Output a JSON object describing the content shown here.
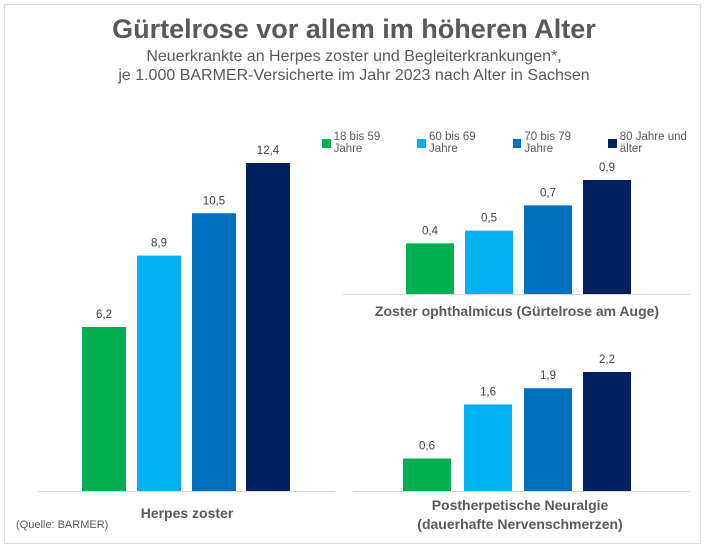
{
  "title": "Gürtelrose vor allem im höheren Alter",
  "subtitle_line1": "Neuerkrankte an Herpes zoster und Begleiterkrankungen*,",
  "subtitle_line2": "je 1.000 BARMER-Versicherte im Jahr 2023 nach Alter in Sachsen",
  "source": "(Quelle: BARMER)",
  "legend": [
    {
      "label": "18 bis 59 Jahre",
      "color": "#00b050"
    },
    {
      "label": "60 bis 69 Jahre",
      "color": "#00b0f0"
    },
    {
      "label": "70 bis 79 Jahre",
      "color": "#0070c0"
    },
    {
      "label": "80 Jahre und älter",
      "color": "#002060"
    }
  ],
  "chart_data": [
    {
      "type": "bar",
      "title": "Herpes zoster",
      "categories": [
        "18 bis 59 Jahre",
        "60 bis 69 Jahre",
        "70 bis 79 Jahre",
        "80 Jahre und älter"
      ],
      "values": [
        6.2,
        8.9,
        10.5,
        12.4
      ],
      "labels": [
        "6,2",
        "8,9",
        "10,5",
        "12,4"
      ],
      "ylim": [
        0,
        12.4
      ],
      "grid": false
    },
    {
      "type": "bar",
      "title": "Zoster ophthalmicus (Gürtelrose am Auge)",
      "categories": [
        "18 bis 59 Jahre",
        "60 bis 69 Jahre",
        "70 bis 79 Jahre",
        "80 Jahre und älter"
      ],
      "values": [
        0.4,
        0.5,
        0.7,
        0.9
      ],
      "labels": [
        "0,4",
        "0,5",
        "0,7",
        "0,9"
      ],
      "ylim": [
        0,
        0.9
      ],
      "grid": false
    },
    {
      "type": "bar",
      "title_line1": "Postherpetische Neuralgie",
      "title_line2": "(dauerhafte Nervenschmerzen)",
      "categories": [
        "18 bis 59 Jahre",
        "60 bis 69 Jahre",
        "70 bis 79 Jahre",
        "80 Jahre und älter"
      ],
      "values": [
        0.6,
        1.6,
        1.9,
        2.2
      ],
      "labels": [
        "0,6",
        "1,6",
        "1,9",
        "2,2"
      ],
      "ylim": [
        0,
        2.2
      ],
      "grid": false
    }
  ]
}
